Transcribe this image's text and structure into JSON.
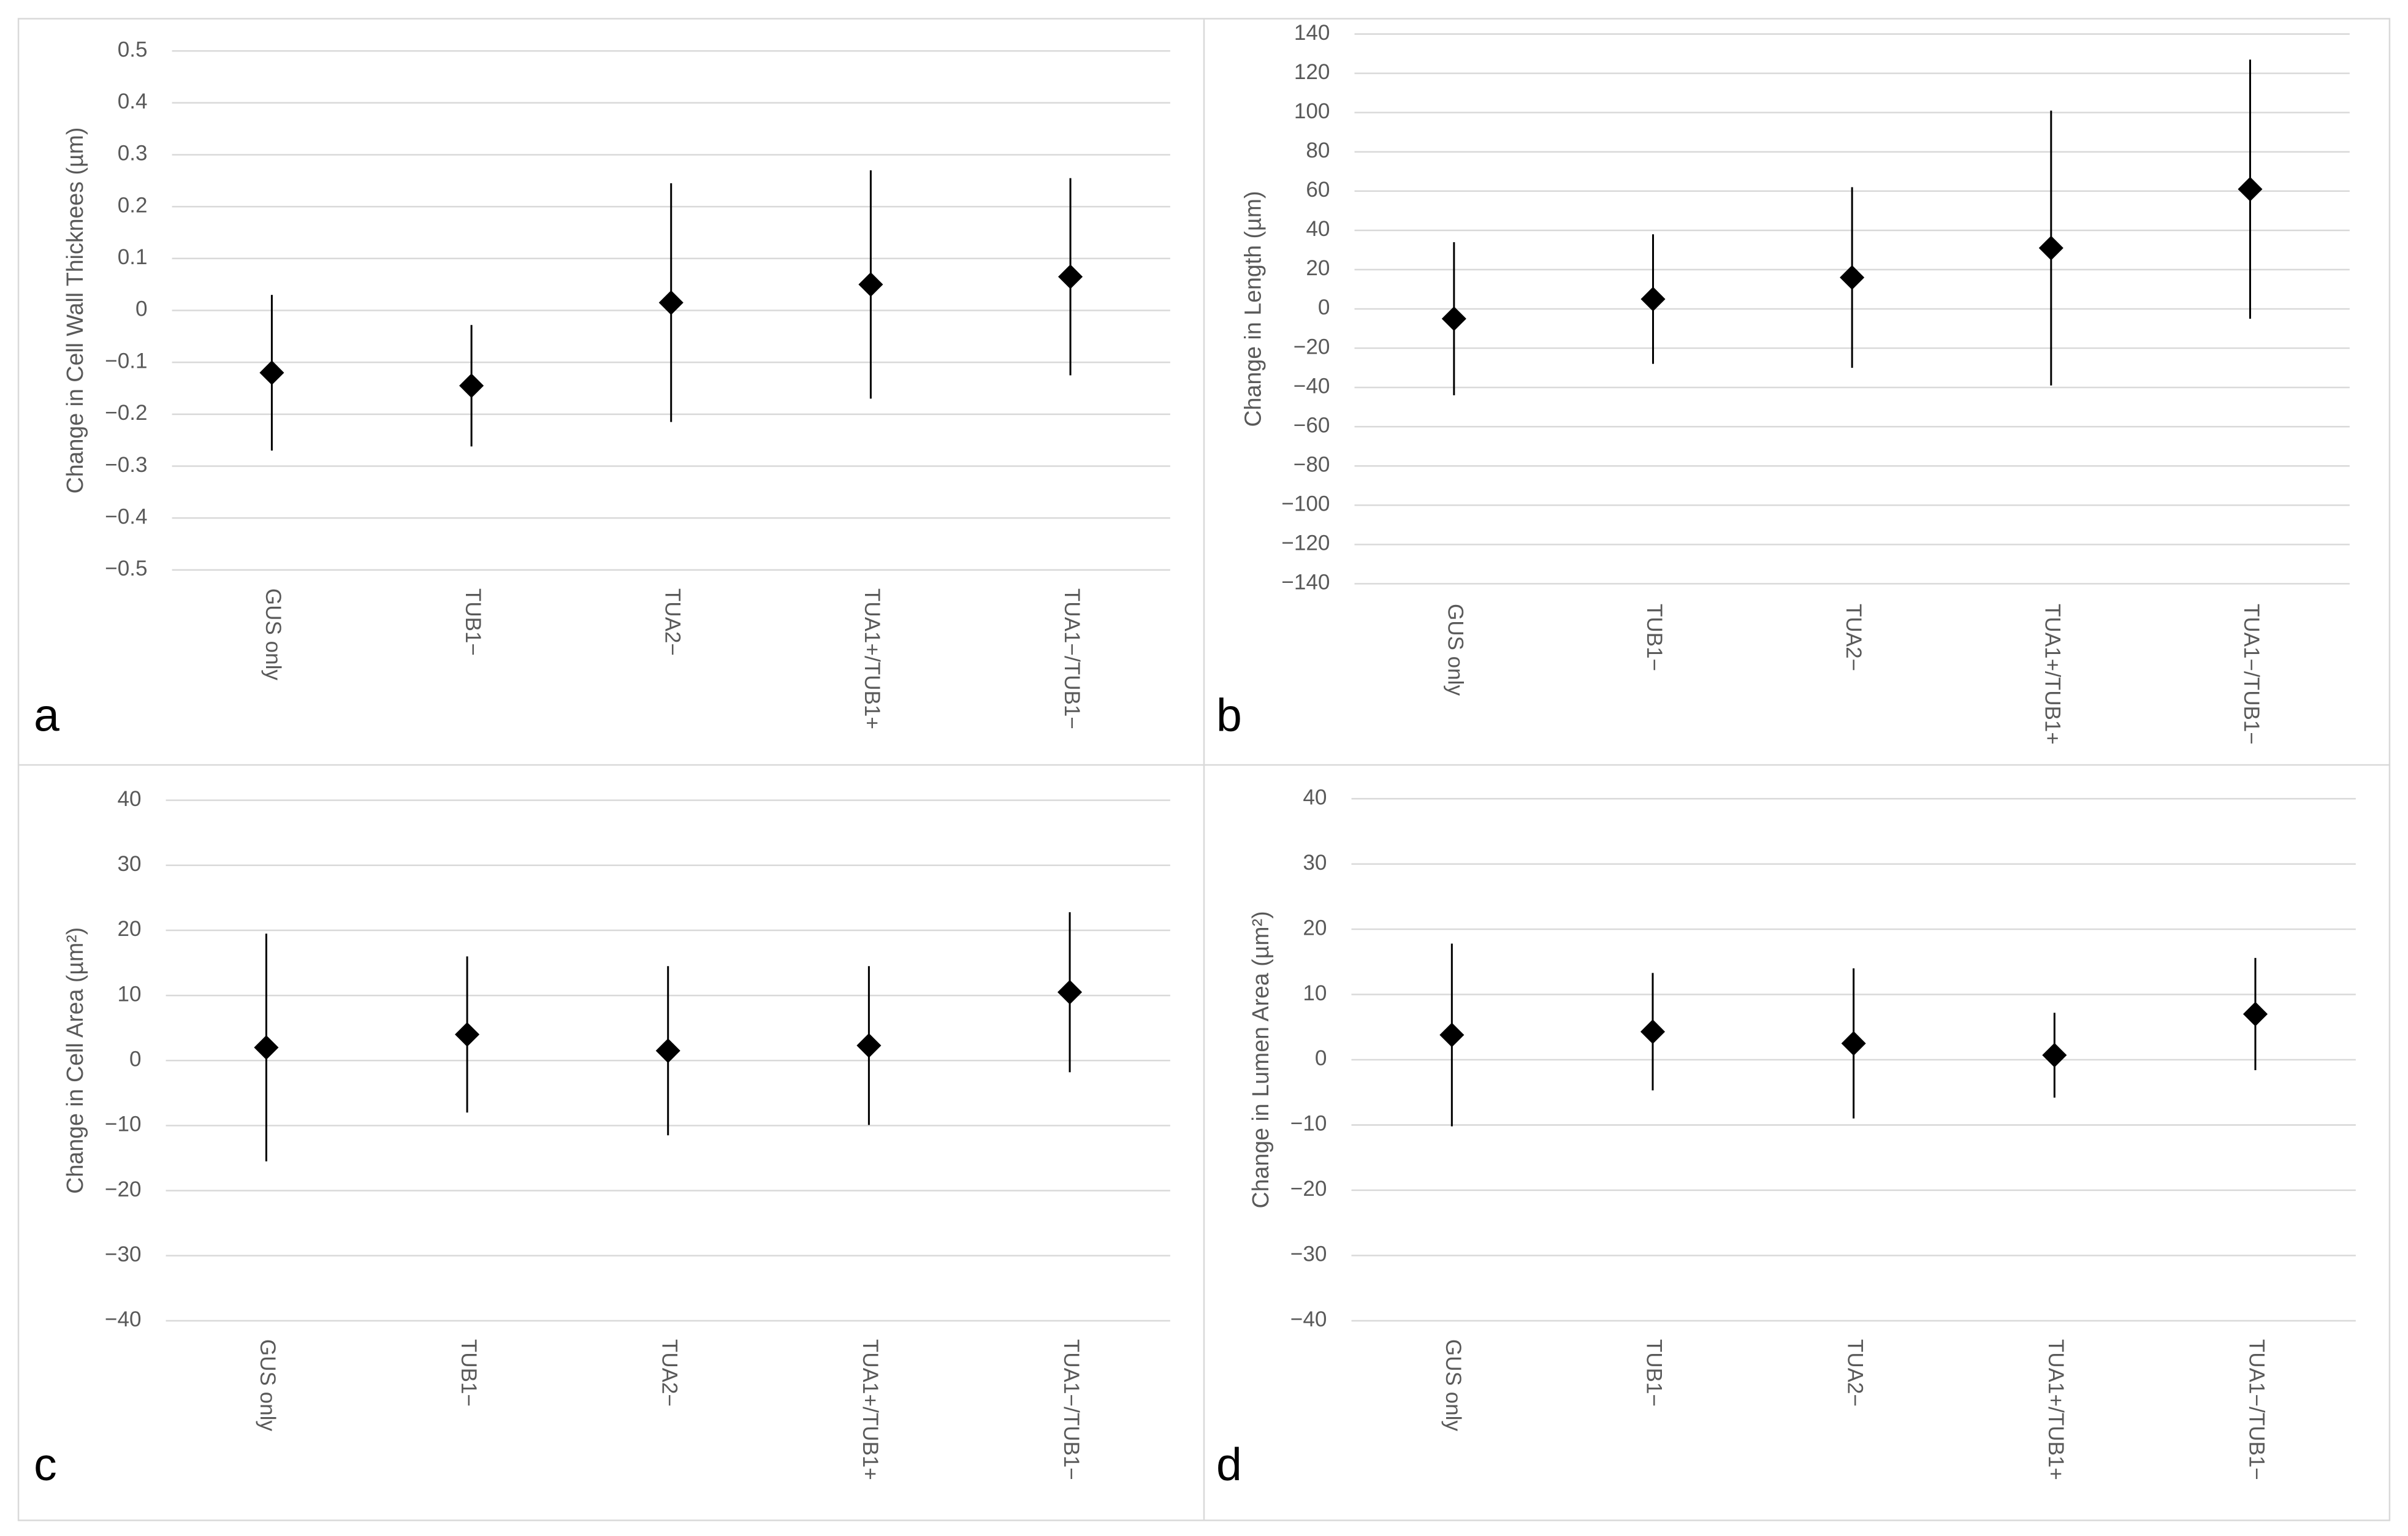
{
  "chart_data": [
    {
      "type": "scatter",
      "panel_label": "a",
      "y_label": "Change in Cell Wall Thicknees (µm)",
      "categories": [
        "GUS only",
        "TUB1−",
        "TUA2−",
        "TUA1+/TUB1+",
        "TUA1−/TUB1−"
      ],
      "values": [
        -0.12,
        -0.145,
        0.015,
        0.05,
        0.065
      ],
      "errors": [
        0.15,
        0.117,
        0.23,
        0.22,
        0.19
      ],
      "color": "#000000",
      "grid": true,
      "ylim": [
        -0.5,
        0.5
      ],
      "yticks": [
        {
          "value": -0.5,
          "label": "−0.5"
        },
        {
          "value": -0.4,
          "label": "−0.4"
        },
        {
          "value": -0.3,
          "label": "−0.3"
        },
        {
          "value": -0.2,
          "label": "−0.2"
        },
        {
          "value": -0.1,
          "label": "−0.1"
        },
        0,
        0.1,
        0.2,
        0.3,
        0.4,
        0.5
      ]
    },
    {
      "type": "scatter",
      "panel_label": "b",
      "y_label": "Change in Length (µm)",
      "categories": [
        "GUS only",
        "TUB1−",
        "TUA2−",
        "TUA1+/TUB1+",
        "TUA1−/TUB1−"
      ],
      "values": [
        -5,
        5,
        16,
        31,
        61
      ],
      "errors": [
        39,
        33,
        46,
        70,
        66
      ],
      "color": "#000000",
      "grid": true,
      "ylim": [
        -140,
        140
      ],
      "yticks": [
        {
          "value": -140,
          "label": "−140"
        },
        {
          "value": -120,
          "label": "−120"
        },
        {
          "value": -100,
          "label": "−100"
        },
        {
          "value": -80,
          "label": "−80"
        },
        {
          "value": -60,
          "label": "−60"
        },
        {
          "value": -40,
          "label": "−40"
        },
        {
          "value": -20,
          "label": "−20"
        },
        0,
        20,
        40,
        60,
        80,
        100,
        120,
        140
      ]
    },
    {
      "type": "scatter",
      "panel_label": "c",
      "y_label": "Change in Cell Area (µm²)",
      "categories": [
        "GUS only",
        "TUB1−",
        "TUA2−",
        "TUA1+/TUB1+",
        "TUA1−/TUB1−"
      ],
      "values": [
        2,
        4,
        1.5,
        2.3,
        10.5
      ],
      "errors": [
        17.5,
        12,
        13,
        12.2,
        12.3
      ],
      "color": "#000000",
      "grid": true,
      "ylim": [
        -40,
        40
      ],
      "yticks": [
        {
          "value": -40,
          "label": "−40"
        },
        {
          "value": -30,
          "label": "−30"
        },
        {
          "value": -20,
          "label": "−20"
        },
        {
          "value": -10,
          "label": "−10"
        },
        0,
        10,
        20,
        30,
        40
      ]
    },
    {
      "type": "scatter",
      "panel_label": "d",
      "y_label": "Change in Lumen Area (µm²)",
      "categories": [
        "GUS only",
        "TUB1−",
        "TUA2−",
        "TUA1+/TUB1+",
        "TUA1−/TUB1−"
      ],
      "values": [
        3.8,
        4.3,
        2.5,
        0.7,
        7
      ],
      "errors": [
        14,
        9,
        11.5,
        6.5,
        8.6
      ],
      "color": "#000000",
      "grid": true,
      "ylim": [
        -40,
        40
      ],
      "yticks": [
        {
          "value": -40,
          "label": "−40"
        },
        {
          "value": -30,
          "label": "−30"
        },
        {
          "value": -20,
          "label": "−20"
        },
        {
          "value": -10,
          "label": "−10"
        },
        0,
        10,
        20,
        30,
        40
      ]
    }
  ]
}
